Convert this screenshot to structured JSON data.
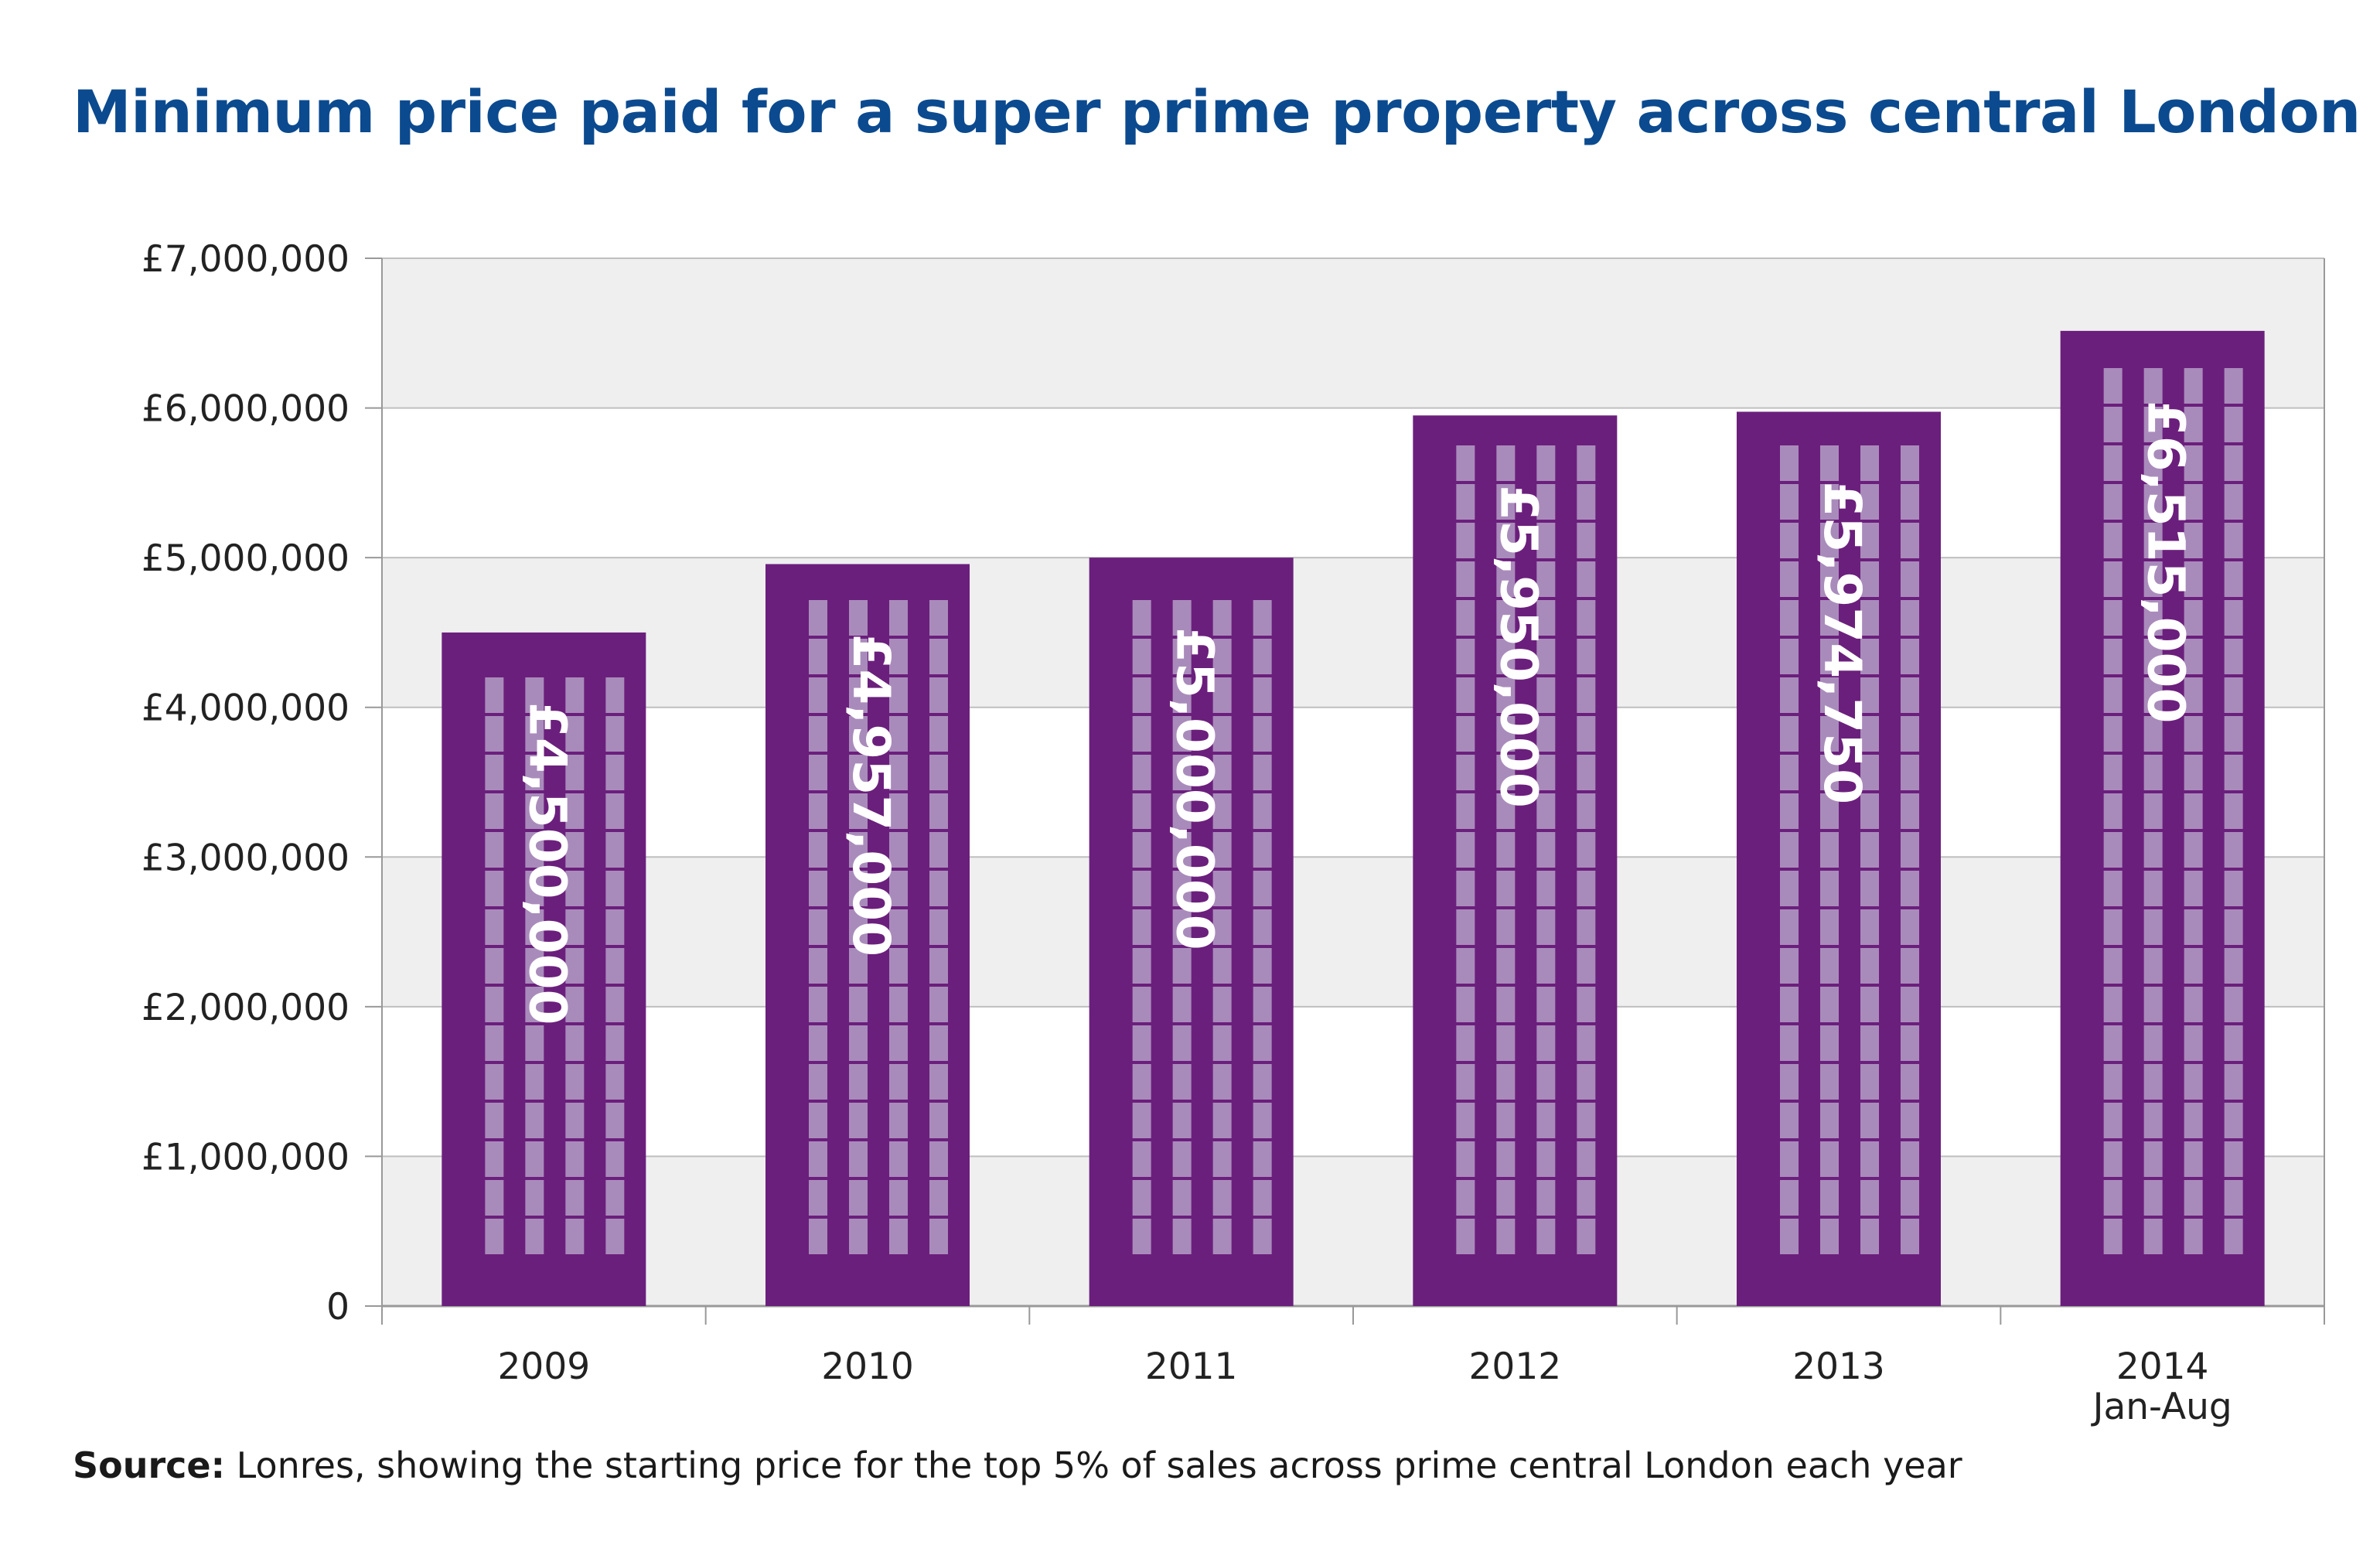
{
  "chart_data": {
    "type": "bar",
    "title": "Minimum price paid for a super prime property across central London",
    "categories": [
      "2009",
      "2010",
      "2011",
      "2012",
      "2013",
      "2014"
    ],
    "category_sublabels": [
      "",
      "",
      "",
      "",
      "",
      "Jan-Aug"
    ],
    "values": [
      4500000,
      4957000,
      5000000,
      5950000,
      5974750,
      6515000
    ],
    "data_labels": [
      "£4,500,000",
      "£4,957,000",
      "£5,000,000",
      "£5,950,000",
      "£5,974,750",
      "£6,515,000"
    ],
    "xlabel": "",
    "ylabel": "",
    "ylim": [
      0,
      7000000
    ],
    "yticks": [
      0,
      1000000,
      2000000,
      3000000,
      4000000,
      5000000,
      6000000,
      7000000
    ],
    "ytick_labels": [
      "0",
      "£1,000,000",
      "£2,000,000",
      "£3,000,000",
      "£4,000,000",
      "£5,000,000",
      "£6,000,000",
      "£7,000,000"
    ],
    "grid": true,
    "legend": "none"
  },
  "colors": {
    "title": "#0b4a8f",
    "bar": "#6b1f7c",
    "window": "#a98bbb",
    "band": "#efefef",
    "grid": "#bfbfbf",
    "axis": "#999999"
  },
  "source": {
    "label": "Source:",
    "text": " Lonres, showing the starting price for the top 5% of sales across prime central London each year"
  }
}
